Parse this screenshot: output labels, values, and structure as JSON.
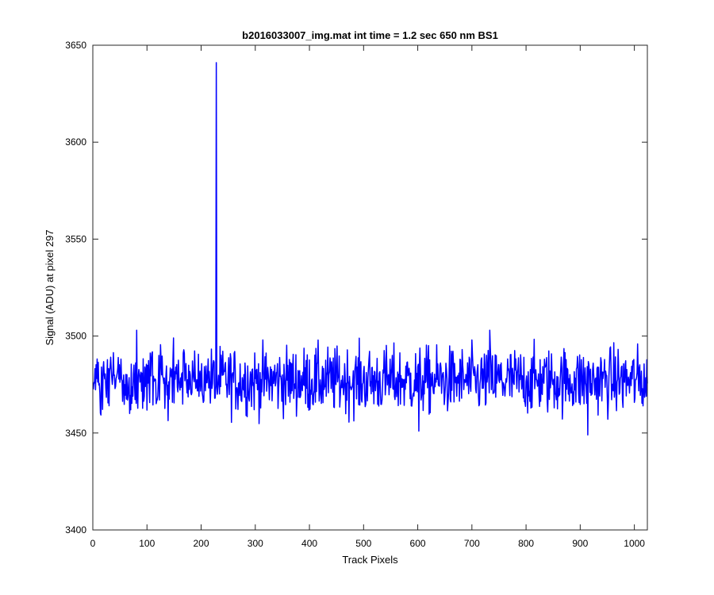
{
  "chart_data": {
    "type": "line",
    "title": "b2016033007_img.mat int time = 1.2 sec  650 nm BS1",
    "xlabel": "Track Pixels",
    "ylabel": "Signal (ADU) at pixel 297",
    "xlim": [
      0,
      1024
    ],
    "ylim": [
      3400,
      3650
    ],
    "xticks": [
      0,
      100,
      200,
      300,
      400,
      500,
      600,
      700,
      800,
      900,
      1000
    ],
    "yticks": [
      3400,
      3450,
      3500,
      3550,
      3600,
      3650
    ],
    "grid": false,
    "series": [
      {
        "name": "",
        "color": "#0000ff",
        "x_start": 1,
        "x_step": 1,
        "n_points": 1024,
        "baseline_mean": 3477,
        "noise_min": 3449,
        "noise_max": 3503,
        "notable_points": [
          {
            "x": 81,
            "y": 3503
          },
          {
            "x": 228,
            "y": 3641
          },
          {
            "x": 226,
            "y": 3468
          },
          {
            "x": 230,
            "y": 3470
          },
          {
            "x": 602,
            "y": 3451
          },
          {
            "x": 733,
            "y": 3503
          },
          {
            "x": 914,
            "y": 3449
          }
        ]
      }
    ]
  }
}
